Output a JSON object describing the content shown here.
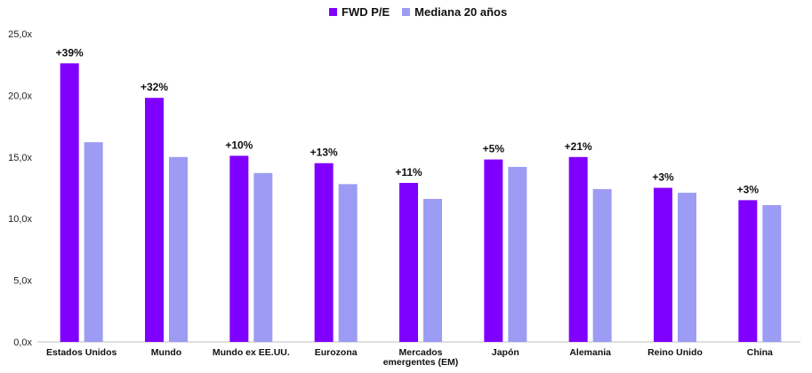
{
  "chart_data": {
    "type": "bar",
    "categories": [
      "Estados Unidos",
      "Mundo",
      "Mundo ex EE.UU.",
      "Eurozona",
      "Mercados emergentes (EM)",
      "Japón",
      "Alemania",
      "Reino Unido",
      "China"
    ],
    "category_lines": [
      [
        "Estados Unidos"
      ],
      [
        "Mundo"
      ],
      [
        "Mundo ex EE.UU."
      ],
      [
        "Eurozona"
      ],
      [
        "Mercados",
        "emergentes (EM)"
      ],
      [
        "Japón"
      ],
      [
        "Alemania"
      ],
      [
        "Reino Unido"
      ],
      [
        "China"
      ]
    ],
    "series": [
      {
        "name": "FWD P/E",
        "color": "#8000ff",
        "values": [
          22.6,
          19.8,
          15.1,
          14.5,
          12.9,
          14.8,
          15.0,
          12.5,
          11.5
        ]
      },
      {
        "name": "Mediana 20 años",
        "color": "#9c9cf5",
        "values": [
          16.2,
          15.0,
          13.7,
          12.8,
          11.6,
          14.2,
          12.4,
          12.1,
          11.1
        ]
      }
    ],
    "annotations": [
      "+39%",
      "+32%",
      "+10%",
      "+13%",
      "+11%",
      "+5%",
      "+21%",
      "+3%",
      "+3%"
    ],
    "yticks": [
      "0,0x",
      "5,0x",
      "10,0x",
      "15,0x",
      "20,0x",
      "25,0x"
    ],
    "ylim": [
      0,
      25
    ],
    "grid": false,
    "legend_position": "top-center"
  }
}
